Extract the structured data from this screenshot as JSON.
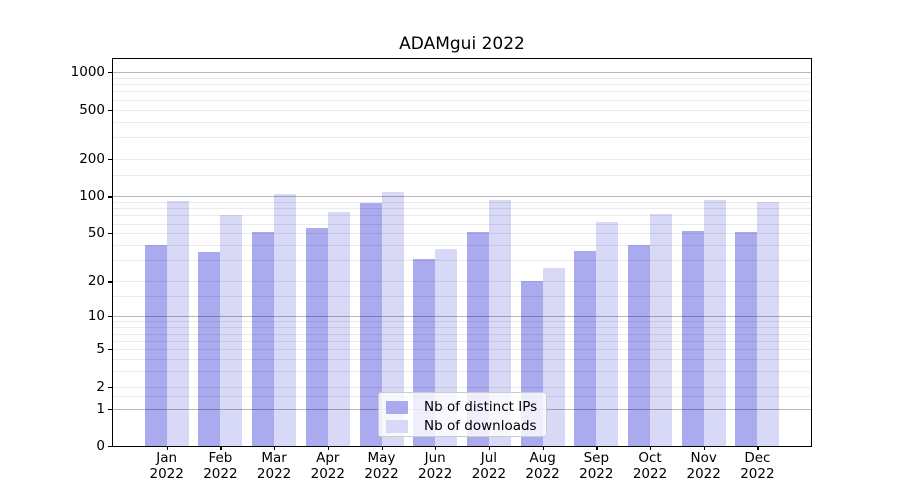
{
  "chart_data": {
    "type": "bar",
    "title": "ADAMgui 2022",
    "x_year": "2022",
    "categories": [
      "Jan",
      "Feb",
      "Mar",
      "Apr",
      "May",
      "Jun",
      "Jul",
      "Aug",
      "Sep",
      "Oct",
      "Nov",
      "Dec"
    ],
    "series": [
      {
        "name": "Nb of distinct IPs",
        "color": "#aaaaee",
        "values": [
          40,
          35,
          51,
          55,
          88,
          31,
          51,
          20,
          36,
          40,
          52,
          51
        ]
      },
      {
        "name": "Nb of downloads",
        "color": "#d8d8f7",
        "values": [
          92,
          70,
          104,
          74,
          109,
          37,
          93,
          26,
          62,
          72,
          93,
          90
        ]
      }
    ],
    "y_axis": {
      "scale": "log1p",
      "tick_labels": [
        0,
        1,
        2,
        5,
        10,
        20,
        50,
        100,
        200,
        500,
        1000
      ],
      "ylim": [
        0,
        1265
      ],
      "minor_grid_subs": [
        1.5,
        2,
        3,
        4,
        5,
        6,
        7,
        8,
        9
      ],
      "grid": true
    },
    "legend": {
      "position": "lower-center"
    },
    "colors": {
      "bar_distinct_ips": "#aaaaee",
      "bar_downloads": "#d8d8f7",
      "major_grid": "#c0c0c0",
      "minor_grid": "#ebebeb",
      "axis": "#000000",
      "legend_border": "#cccccc"
    }
  }
}
